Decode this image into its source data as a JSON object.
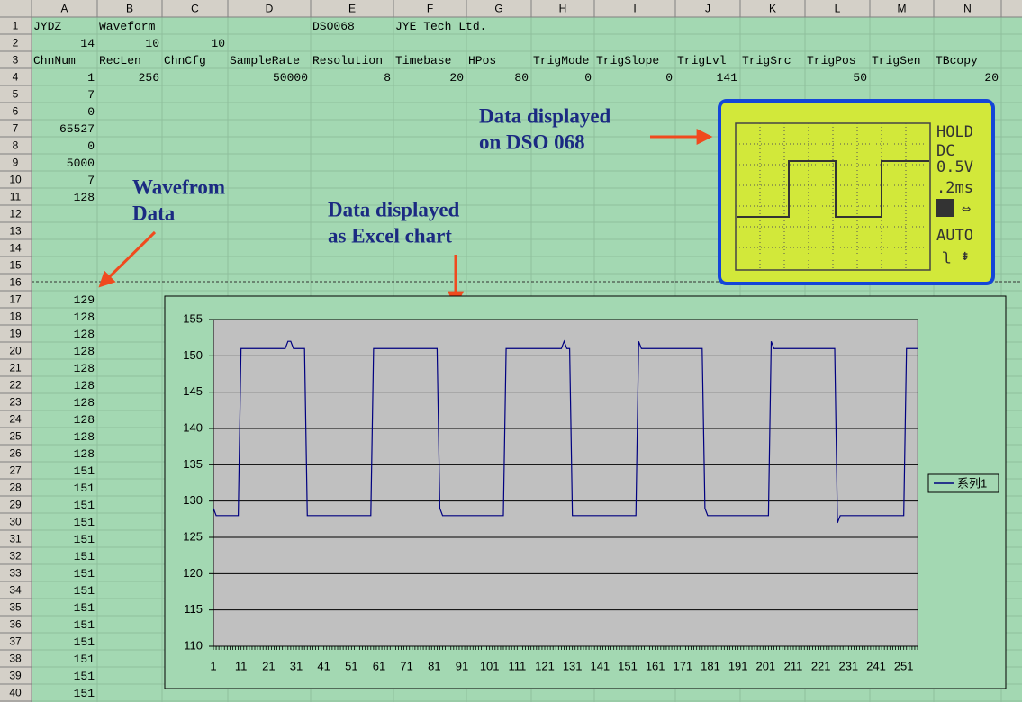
{
  "sheet": {
    "columns": [
      "A",
      "B",
      "C",
      "D",
      "E",
      "F",
      "G",
      "H",
      "I",
      "J",
      "K",
      "L",
      "M",
      "N"
    ],
    "rows": [
      {
        "num": 1,
        "cells": {
          "A": "JYDZ",
          "B": "Waveform",
          "E": "DSO068",
          "F": "JYE Tech Ltd."
        }
      },
      {
        "num": 2,
        "cells": {
          "A": 14,
          "B": 10,
          "C": 10
        }
      },
      {
        "num": 3,
        "cells": {
          "A": "ChnNum",
          "B": "RecLen",
          "C": "ChnCfg",
          "D": "SampleRate",
          "E": "Resolution",
          "F": "Timebase",
          "G": "HPos",
          "H": "TrigMode",
          "I": "TrigSlope",
          "J": "TrigLvl",
          "K": "TrigSrc",
          "L": "TrigPos",
          "M": "TrigSen",
          "N": "TBcopy"
        }
      },
      {
        "num": 4,
        "cells": {
          "A": 1,
          "B": 256,
          "D": 50000,
          "E": 8,
          "F": 20,
          "G": 80,
          "H": 0,
          "I": 0,
          "J": 141,
          "L": 50,
          "N": 20
        }
      },
      {
        "num": 5,
        "cells": {
          "A": 7
        }
      },
      {
        "num": 6,
        "cells": {
          "A": 0
        }
      },
      {
        "num": 7,
        "cells": {
          "A": 65527
        }
      },
      {
        "num": 8,
        "cells": {
          "A": 0
        }
      },
      {
        "num": 9,
        "cells": {
          "A": 5000
        }
      },
      {
        "num": 10,
        "cells": {
          "A": 7
        }
      },
      {
        "num": 11,
        "cells": {
          "A": 128
        }
      },
      {
        "num": 12,
        "cells": {}
      },
      {
        "num": 13,
        "cells": {}
      },
      {
        "num": 14,
        "cells": {}
      },
      {
        "num": 15,
        "cells": {}
      },
      {
        "num": 16,
        "cells": {}
      },
      {
        "num": 17,
        "cells": {
          "A": 129
        }
      },
      {
        "num": 18,
        "cells": {
          "A": 128
        }
      },
      {
        "num": 19,
        "cells": {
          "A": 128
        }
      },
      {
        "num": 20,
        "cells": {
          "A": 128
        }
      },
      {
        "num": 21,
        "cells": {
          "A": 128
        }
      },
      {
        "num": 22,
        "cells": {
          "A": 128
        }
      },
      {
        "num": 23,
        "cells": {
          "A": 128
        }
      },
      {
        "num": 24,
        "cells": {
          "A": 128
        }
      },
      {
        "num": 25,
        "cells": {
          "A": 128
        }
      },
      {
        "num": 26,
        "cells": {
          "A": 128
        }
      },
      {
        "num": 27,
        "cells": {
          "A": 151
        }
      },
      {
        "num": 28,
        "cells": {
          "A": 151
        }
      },
      {
        "num": 29,
        "cells": {
          "A": 151
        }
      },
      {
        "num": 30,
        "cells": {
          "A": 151
        }
      },
      {
        "num": 31,
        "cells": {
          "A": 151
        }
      },
      {
        "num": 32,
        "cells": {
          "A": 151
        }
      },
      {
        "num": 33,
        "cells": {
          "A": 151
        }
      },
      {
        "num": 34,
        "cells": {
          "A": 151
        }
      },
      {
        "num": 35,
        "cells": {
          "A": 151
        }
      },
      {
        "num": 36,
        "cells": {
          "A": 151
        }
      },
      {
        "num": 37,
        "cells": {
          "A": 151
        }
      },
      {
        "num": 38,
        "cells": {
          "A": 151
        }
      },
      {
        "num": 39,
        "cells": {
          "A": 151
        }
      },
      {
        "num": 40,
        "cells": {
          "A": 151
        }
      }
    ]
  },
  "annotations": [
    {
      "lines": [
        "Data displayed",
        "on DSO 068"
      ]
    },
    {
      "lines": [
        "Wavefrom",
        "Data"
      ]
    },
    {
      "lines": [
        "Data displayed",
        "as Excel chart"
      ]
    }
  ],
  "lcd": {
    "labels": [
      "HOLD",
      "DC",
      "0.5V",
      ".2ms",
      "AUTO"
    ]
  },
  "chart_data": {
    "type": "line",
    "ylim": [
      110,
      155
    ],
    "yticks": [
      110,
      115,
      120,
      125,
      130,
      135,
      140,
      145,
      150,
      155
    ],
    "grid": true,
    "legend": "right",
    "categories": [
      1,
      null,
      null,
      null,
      null,
      null,
      null,
      null,
      null,
      null,
      11,
      null,
      null,
      null,
      null,
      null,
      null,
      null,
      null,
      null,
      21,
      null,
      null,
      null,
      null,
      null,
      null,
      null,
      null,
      null,
      31,
      null,
      null,
      null,
      null,
      null,
      null,
      null,
      null,
      null,
      41,
      null,
      null,
      null,
      null,
      null,
      null,
      null,
      null,
      null,
      51,
      null,
      null,
      null,
      null,
      null,
      null,
      null,
      null,
      null,
      61,
      null,
      null,
      null,
      null,
      null,
      null,
      null,
      null,
      null,
      71,
      null,
      null,
      null,
      null,
      null,
      null,
      null,
      null,
      null,
      81,
      null,
      null,
      null,
      null,
      null,
      null,
      null,
      null,
      null,
      91,
      null,
      null,
      null,
      null,
      null,
      null,
      null,
      null,
      null,
      101,
      null,
      null,
      null,
      null,
      null,
      null,
      null,
      null,
      null,
      111,
      null,
      null,
      null,
      null,
      null,
      null,
      null,
      null,
      null,
      121,
      null,
      null,
      null,
      null,
      null,
      null,
      null,
      null,
      null,
      131,
      null,
      null,
      null,
      null,
      null,
      null,
      null,
      null,
      null,
      141,
      null,
      null,
      null,
      null,
      null,
      null,
      null,
      null,
      null,
      151,
      null,
      null,
      null,
      null,
      null,
      null,
      null,
      null,
      null,
      161,
      null,
      null,
      null,
      null,
      null,
      null,
      null,
      null,
      null,
      171,
      null,
      null,
      null,
      null,
      null,
      null,
      null,
      null,
      null,
      181,
      null,
      null,
      null,
      null,
      null,
      null,
      null,
      null,
      null,
      191,
      null,
      null,
      null,
      null,
      null,
      null,
      null,
      null,
      null,
      201,
      null,
      null,
      null,
      null,
      null,
      null,
      null,
      null,
      null,
      211,
      null,
      null,
      null,
      null,
      null,
      null,
      null,
      null,
      null,
      221,
      null,
      null,
      null,
      null,
      null,
      null,
      null,
      null,
      null,
      231,
      null,
      null,
      null,
      null,
      null,
      null,
      null,
      null,
      null,
      241,
      null,
      null,
      null,
      null,
      null,
      null,
      null,
      null,
      null,
      251,
      null,
      null,
      null,
      null,
      null
    ],
    "series": [
      {
        "name": "系列1",
        "color": "#000080",
        "values": [
          129,
          128,
          128,
          128,
          128,
          128,
          128,
          128,
          128,
          128,
          151,
          151,
          151,
          151,
          151,
          151,
          151,
          151,
          151,
          151,
          151,
          151,
          151,
          151,
          151,
          151,
          151,
          152,
          152,
          151,
          151,
          151,
          151,
          151,
          128,
          128,
          128,
          128,
          128,
          128,
          128,
          128,
          128,
          128,
          128,
          128,
          128,
          128,
          128,
          128,
          128,
          128,
          128,
          128,
          128,
          128,
          128,
          128,
          151,
          151,
          151,
          151,
          151,
          151,
          151,
          151,
          151,
          151,
          151,
          151,
          151,
          151,
          151,
          151,
          151,
          151,
          151,
          151,
          151,
          151,
          151,
          151,
          129,
          128,
          128,
          128,
          128,
          128,
          128,
          128,
          128,
          128,
          128,
          128,
          128,
          128,
          128,
          128,
          128,
          128,
          128,
          128,
          128,
          128,
          128,
          128,
          151,
          151,
          151,
          151,
          151,
          151,
          151,
          151,
          151,
          151,
          151,
          151,
          151,
          151,
          151,
          151,
          151,
          151,
          151,
          151,
          151,
          152,
          151,
          151,
          128,
          128,
          128,
          128,
          128,
          128,
          128,
          128,
          128,
          128,
          128,
          128,
          128,
          128,
          128,
          128,
          128,
          128,
          128,
          128,
          128,
          128,
          128,
          128,
          152,
          151,
          151,
          151,
          151,
          151,
          151,
          151,
          151,
          151,
          151,
          151,
          151,
          151,
          151,
          151,
          151,
          151,
          151,
          151,
          151,
          151,
          151,
          151,
          129,
          128,
          128,
          128,
          128,
          128,
          128,
          128,
          128,
          128,
          128,
          128,
          128,
          128,
          128,
          128,
          128,
          128,
          128,
          128,
          128,
          128,
          128,
          128,
          152,
          151,
          151,
          151,
          151,
          151,
          151,
          151,
          151,
          151,
          151,
          151,
          151,
          151,
          151,
          151,
          151,
          151,
          151,
          151,
          151,
          151,
          151,
          151,
          127,
          128,
          128,
          128,
          128,
          128,
          128,
          128,
          128,
          128,
          128,
          128,
          128,
          128,
          128,
          128,
          128,
          128,
          128,
          128,
          128,
          128,
          128,
          128,
          128,
          151,
          151,
          151,
          151,
          151
        ]
      }
    ]
  }
}
